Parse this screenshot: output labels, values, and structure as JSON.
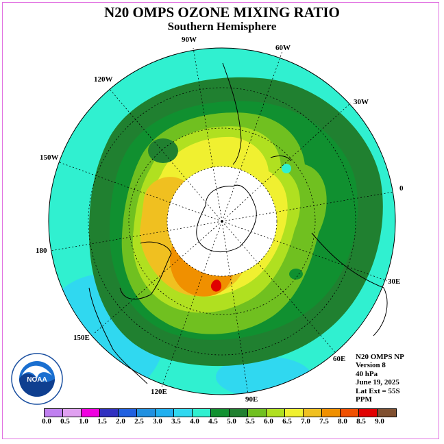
{
  "title": "N20 OMPS OZONE MIXING RATIO",
  "subtitle": "Southern Hemisphere",
  "longitude_labels": [
    "90W",
    "60W",
    "30W",
    "0",
    "30E",
    "60E",
    "90E",
    "120E",
    "150E",
    "180",
    "150W",
    "120W"
  ],
  "info": {
    "line1": "N20 OMPS NP",
    "line2": "Version 8",
    "line3": "40 hPa",
    "line4": "June 19, 2025",
    "line5": "Lat Ext = 55S",
    "line6": "PPM"
  },
  "logo": {
    "text": "NOAA",
    "ring_text": "NATIONAL OCEANIC AND ATMOSPHERIC ADMINISTRATION U.S. DEPARTMENT OF COMMERCE"
  },
  "colorbar": {
    "ticks": [
      "0.0",
      "0.5",
      "1.0",
      "1.5",
      "2.0",
      "2.5",
      "3.0",
      "3.5",
      "4.0",
      "4.5",
      "5.0",
      "5.5",
      "6.0",
      "6.5",
      "7.0",
      "7.5",
      "8.0",
      "8.5",
      "9.0"
    ],
    "colors": [
      "#c080f0",
      "#e0a0f0",
      "#f000e0",
      "#3030c0",
      "#2060e0",
      "#2090e0",
      "#20b0f0",
      "#30d8f0",
      "#30f0d0",
      "#109030",
      "#208030",
      "#70c020",
      "#b0e020",
      "#f0f030",
      "#f0c020",
      "#f09000",
      "#f05000",
      "#e00000",
      "#805030"
    ]
  },
  "map_colors": {
    "outer": "#30f0d0",
    "band1": "#208030",
    "band2": "#109030",
    "band3": "#70c020",
    "band4": "#b0e020",
    "band5": "#f0f030",
    "band6": "#f0c020",
    "band7": "#f09000",
    "peak": "#e00000",
    "low": "#30d8f0",
    "pole": "#ffffff"
  }
}
